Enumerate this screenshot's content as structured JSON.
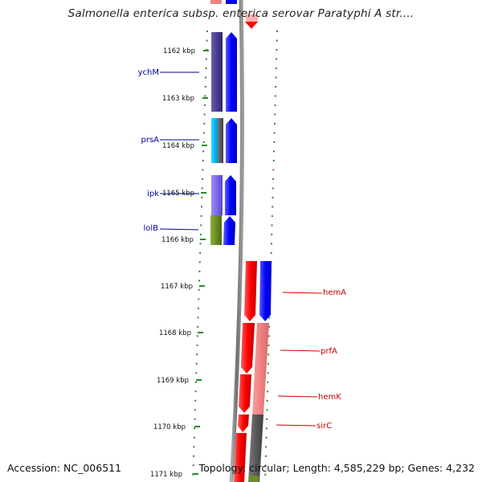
{
  "title": "Salmonella enterica subsp. enterica serovar Paratyphi A str....",
  "footer": {
    "accession": "Accession: NC_006511",
    "topology": "Topology: circular; Length: 4,585,229 bp; Genes: 4,232"
  },
  "ruler": {
    "unit": "kbp",
    "ticks": [
      {
        "kbp": 1162,
        "label": "1162 kbp"
      },
      {
        "kbp": 1163,
        "label": "1163 kbp"
      },
      {
        "kbp": 1164,
        "label": "1164 kbp"
      },
      {
        "kbp": 1165,
        "label": "1165 kbp"
      },
      {
        "kbp": 1166,
        "label": "1166 kbp"
      },
      {
        "kbp": 1167,
        "label": "1167 kbp"
      },
      {
        "kbp": 1168,
        "label": "1168 kbp"
      },
      {
        "kbp": 1169,
        "label": "1169 kbp"
      },
      {
        "kbp": 1170,
        "label": "1170 kbp"
      },
      {
        "kbp": 1171,
        "label": "1171 kbp"
      }
    ]
  },
  "genes_left": [
    {
      "label": "ychM",
      "color": "#000099"
    },
    {
      "label": "prsA",
      "color": "#000099"
    },
    {
      "label": "ipk",
      "color": "#000099"
    },
    {
      "label": "lolB",
      "color": "#000099"
    }
  ],
  "genes_right": [
    {
      "label": "hemA",
      "color": "#cc0000"
    },
    {
      "label": "prfA",
      "color": "#cc0000"
    },
    {
      "label": "hemK",
      "color": "#cc0000"
    },
    {
      "label": "sirC",
      "color": "#cc0000"
    }
  ],
  "colors": {
    "backbone": "#808080",
    "tick": "#2a8a2a",
    "forward_cds": "#0000ff",
    "reverse_cds": "#ff0000",
    "cog_purple": "#483d8b",
    "cog_cyan": "#00bfff",
    "cog_lavender": "#7b68ee",
    "cog_olive": "#6b8e23",
    "cog_salmon": "#f08080",
    "cog_gray": "#5a5a5a"
  }
}
